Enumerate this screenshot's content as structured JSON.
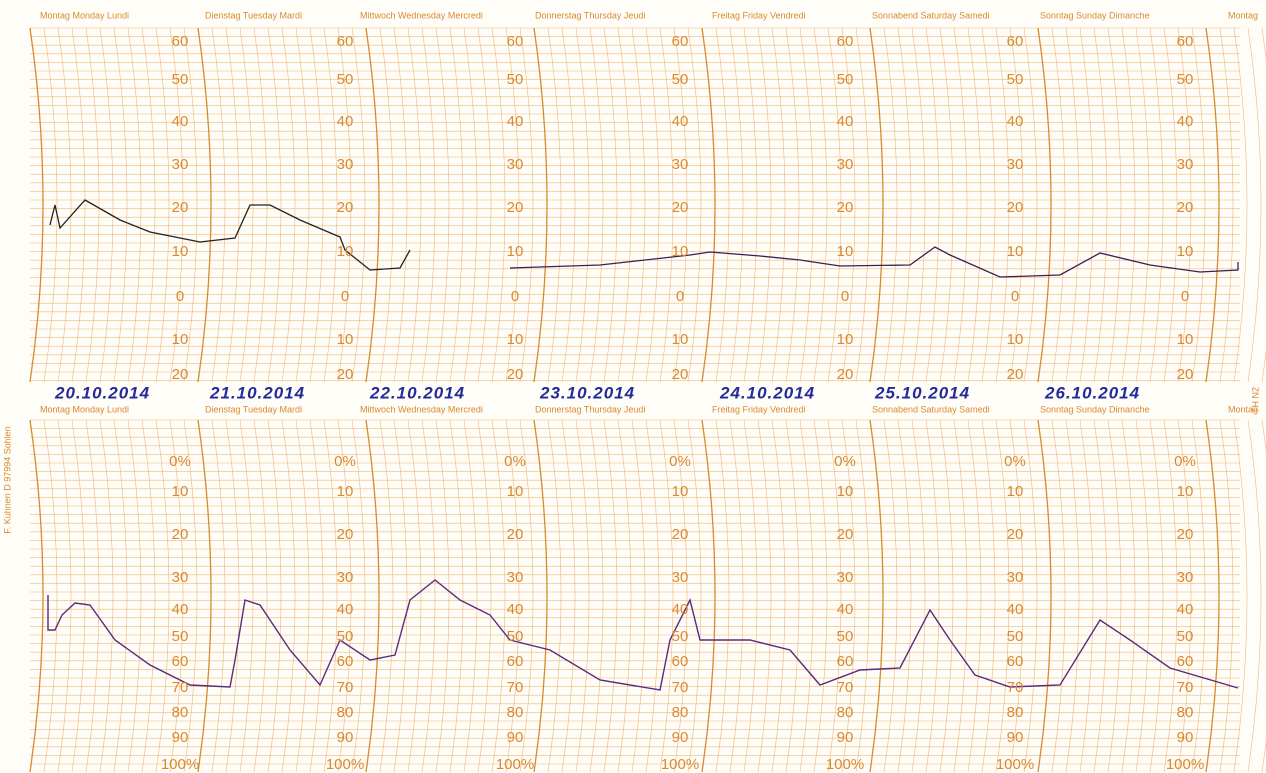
{
  "header_top": {
    "days": [
      "Montag Monday Lundi",
      "Dienstag Tuesday Mardi",
      "Mittwoch Wednesday Mercredi",
      "Donnerstag Thursday Jeudi",
      "Freitag Friday Vendredi",
      "Sonnabend Saturday Samedi",
      "Sonntag Sunday Dimanche",
      "Montag"
    ]
  },
  "header_bottom": {
    "days": [
      "Montag Monday Lundi",
      "Dienstag Tuesday Mardi",
      "Mittwoch Wednesday Mercredi",
      "Donnerstag Thursday Jeudi",
      "Freitag Friday Vendredi",
      "Sonnabend Saturday Samedi",
      "Sonntag Sunday Dimanche",
      "Montag"
    ]
  },
  "dates": [
    "20.10.2014",
    "21.10.2014",
    "22.10.2014",
    "23.10.2014",
    "24.10.2014",
    "25.10.2014",
    "26.10.2014"
  ],
  "temperature_scale": [
    "60",
    "50",
    "40",
    "30",
    "20",
    "10",
    "0",
    "10",
    "20"
  ],
  "humidity_scale": [
    "0%",
    "10",
    "20",
    "30",
    "40",
    "50",
    "60",
    "70",
    "80",
    "90",
    "100%"
  ],
  "side_left": "F. Kuhnen D 97994 Sohlen",
  "side_right": "TH N2"
}
